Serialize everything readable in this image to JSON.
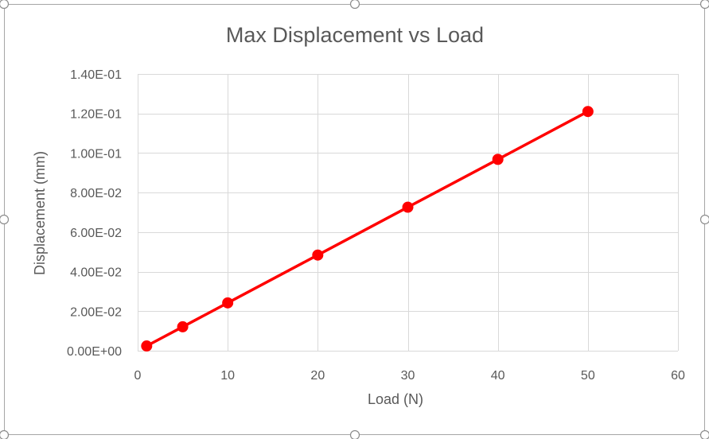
{
  "chart_data": {
    "type": "scatter",
    "title": "Max Displacement vs Load",
    "xlabel": "Load (N)",
    "ylabel": "Displacement (mm)",
    "xlim": [
      0,
      60
    ],
    "ylim": [
      0,
      0.14
    ],
    "xticks": [
      0,
      10,
      20,
      30,
      40,
      50,
      60
    ],
    "xtick_labels": [
      "0",
      "10",
      "20",
      "30",
      "40",
      "50",
      "60"
    ],
    "yticks": [
      0,
      0.02,
      0.04,
      0.06,
      0.08,
      0.1,
      0.12,
      0.14
    ],
    "ytick_labels": [
      "0.00E+00",
      "2.00E-02",
      "4.00E-02",
      "6.00E-02",
      "8.00E-02",
      "1.00E-01",
      "1.20E-01",
      "1.40E-01"
    ],
    "grid": true,
    "legend": "none",
    "series": [
      {
        "style": "line-with-markers",
        "color": "#ff0000",
        "x": [
          1,
          5,
          10,
          20,
          30,
          40,
          50
        ],
        "y": [
          0.0024,
          0.0121,
          0.0242,
          0.0484,
          0.0726,
          0.0968,
          0.121
        ]
      }
    ],
    "frame_color": "#a6a6a6",
    "grid_color": "#d9d9d9",
    "text_color": "#595959"
  }
}
